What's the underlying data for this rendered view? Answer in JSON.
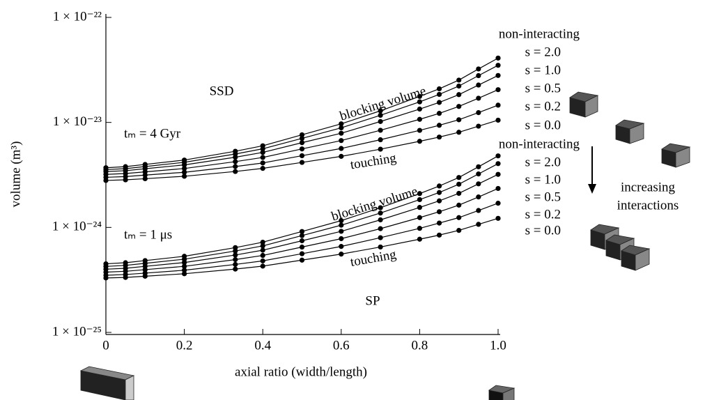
{
  "chart_data": {
    "type": "line",
    "y_label": "volume (m³)",
    "x_label": "axial ratio (width/length)",
    "log_y": true,
    "marker": "circle",
    "color": "#000000",
    "xlim": [
      0,
      1
    ],
    "ylim": [
      1e-25,
      1e-22
    ],
    "xticks": [
      0,
      0.2,
      0.4,
      0.6,
      0.8,
      {
        "value": 1,
        "label": "1.0"
      }
    ],
    "yticks": [
      {
        "value": 1e-25,
        "label": "1 × 10⁻²⁵"
      },
      {
        "value": 1e-24,
        "label": "1 × 10⁻²⁴"
      },
      {
        "value": 1e-23,
        "label": "1 × 10⁻²³"
      },
      {
        "value": 1e-22,
        "label": "1 × 10⁻²²"
      }
    ],
    "x": [
      0,
      0.05,
      0.1,
      0.2,
      0.33,
      0.4,
      0.5,
      0.6,
      0.7,
      0.8,
      0.85,
      0.9,
      0.95,
      1.0
    ],
    "series": [
      {
        "name": "non-interacting",
        "color": "#000000",
        "values": [
          3.7e-24,
          3.79e-24,
          3.98e-24,
          4.38e-24,
          5.31e-24,
          5.99e-24,
          7.62e-24,
          9.69e-24,
          1.29e-23,
          1.77e-23,
          2.09e-23,
          2.53e-23,
          3.23e-23,
          4.1e-23
        ]
      },
      {
        "name": "s = 2.0",
        "color": "#000000",
        "values": [
          3.55e-24,
          3.63e-24,
          3.8e-24,
          4.17e-24,
          5e-24,
          5.61e-24,
          7.05e-24,
          8.88e-24,
          1.17e-23,
          1.57e-23,
          1.85e-23,
          2.22e-23,
          2.79e-23,
          3.5e-23
        ]
      },
      {
        "name": "s = 1.0",
        "color": "#000000",
        "values": [
          3.4e-24,
          3.47e-24,
          3.62e-24,
          3.94e-24,
          4.66e-24,
          5.18e-24,
          6.41e-24,
          7.89e-24,
          1.02e-23,
          1.34e-23,
          1.55e-23,
          1.84e-23,
          2.27e-23,
          2.8e-23
        ]
      },
      {
        "name": "s = 0.5",
        "color": "#000000",
        "values": [
          3.2e-24,
          3.26e-24,
          3.38e-24,
          3.64e-24,
          4.23e-24,
          4.64e-24,
          5.59e-24,
          6.72e-24,
          8.42e-24,
          1.07e-23,
          1.22e-23,
          1.42e-23,
          1.7e-23,
          2.05e-23
        ]
      },
      {
        "name": "s = 0.2",
        "color": "#000000",
        "values": [
          3e-24,
          3.05e-24,
          3.15e-24,
          3.35e-24,
          3.8e-24,
          4.11e-24,
          4.82e-24,
          5.65e-24,
          6.84e-24,
          8.4e-24,
          9.39e-24,
          1.06e-23,
          1.24e-23,
          1.46e-23
        ]
      },
      {
        "name": "s = 0.0",
        "color": "#000000",
        "values": [
          2.8e-24,
          2.84e-24,
          2.91e-24,
          3.07e-24,
          3.41e-24,
          3.65e-24,
          4.16e-24,
          4.75e-24,
          5.56e-24,
          6.61e-24,
          7.25e-24,
          8.06e-24,
          9.21e-24,
          1.05e-23
        ]
      },
      {
        "name": "non-interacting",
        "color": "#000000",
        "values": [
          4.5e-25,
          4.61e-25,
          4.83e-25,
          5.31e-25,
          6.42e-25,
          7.23e-25,
          9.14e-25,
          1.16e-24,
          1.54e-24,
          2.1e-24,
          2.48e-24,
          2.99e-24,
          3.78e-24,
          4.8e-24
        ]
      },
      {
        "name": "s = 2.0",
        "color": "#000000",
        "values": [
          4.25e-25,
          4.35e-25,
          4.55e-25,
          4.98e-25,
          5.96e-25,
          6.67e-25,
          8.36e-25,
          1.05e-24,
          1.37e-24,
          1.84e-24,
          2.15e-24,
          2.58e-24,
          3.23e-24,
          4.05e-24
        ]
      },
      {
        "name": "s = 1.0",
        "color": "#000000",
        "values": [
          4e-25,
          4.08e-25,
          4.26e-25,
          4.63e-25,
          5.46e-25,
          6.07e-25,
          7.46e-25,
          9.18e-25,
          1.18e-24,
          1.55e-24,
          1.79e-24,
          2.11e-24,
          2.6e-24,
          3.2e-24
        ]
      },
      {
        "name": "s = 0.5",
        "color": "#000000",
        "values": [
          3.75e-25,
          3.82e-25,
          3.96e-25,
          4.26e-25,
          4.94e-25,
          5.41e-25,
          6.5e-25,
          7.81e-25,
          9.73e-25,
          1.24e-24,
          1.41e-24,
          1.63e-24,
          1.95e-24,
          2.35e-24
        ]
      },
      {
        "name": "s = 0.2",
        "color": "#000000",
        "values": [
          3.5e-25,
          3.56e-25,
          3.67e-25,
          3.91e-25,
          4.44e-25,
          4.8e-25,
          5.62e-25,
          6.59e-25,
          7.98e-25,
          9.8e-25,
          1.1e-24,
          1.24e-24,
          1.45e-24,
          1.7e-24
        ]
      },
      {
        "name": "s = 0.0",
        "color": "#000000",
        "values": [
          3.3e-25,
          3.34e-25,
          3.43e-25,
          3.62e-25,
          4.01e-25,
          4.28e-25,
          4.88e-25,
          5.57e-25,
          6.51e-25,
          7.72e-25,
          8.45e-25,
          9.37e-25,
          1.07e-24,
          1.22e-24
        ]
      }
    ],
    "annotations": [
      "SSD",
      "tₘ = 4 Gyr",
      "blocking volume",
      "touching",
      "SP",
      "tₘ = 1 μs",
      "blocking volume",
      "touching",
      "increasing",
      "interactions"
    ]
  }
}
